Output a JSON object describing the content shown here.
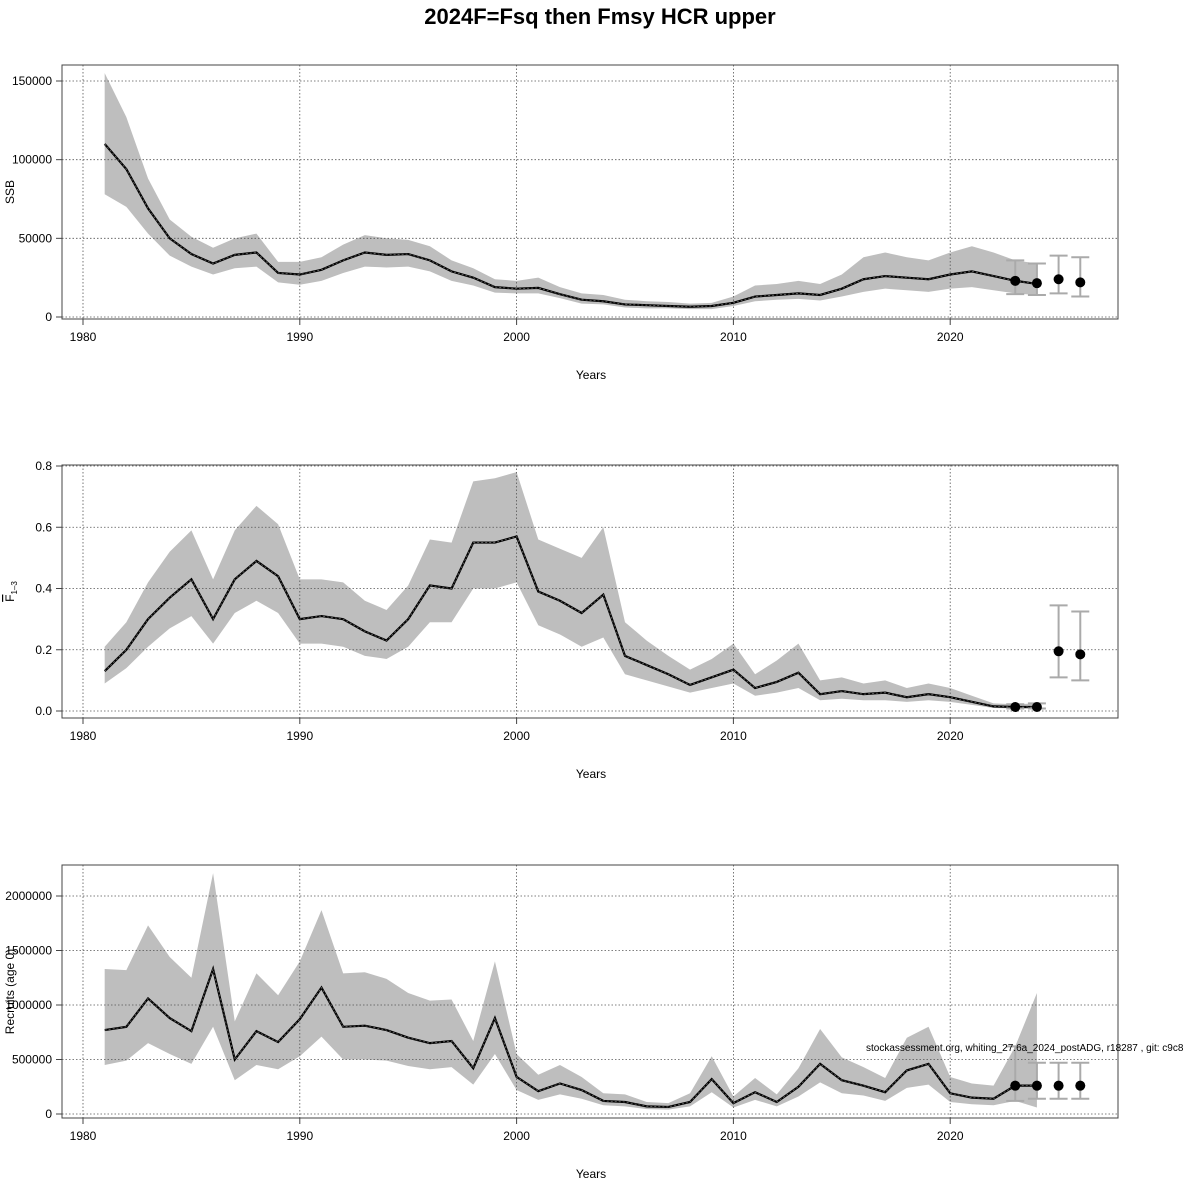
{
  "title": "2024F=Fsq then Fmsy HCR upper",
  "footer": "stockassessment.org, whiting_27.6a_2024_postADG, r18287 , git: c9c8",
  "colors": {
    "band": "#bebebe",
    "line": "#000000",
    "errorbar": "#aaaaaa",
    "grid": "#555555"
  },
  "chart_data": [
    {
      "type": "area",
      "xlabel": "Years",
      "ylabel": "SSB",
      "xlim": [
        1980,
        2026
      ],
      "ylim": [
        0,
        150000
      ],
      "xticks": [
        1980,
        1990,
        2000,
        2010,
        2020
      ],
      "yticks": [
        0,
        50000,
        100000,
        150000
      ],
      "grid": true,
      "x": [
        1981,
        1982,
        1983,
        1984,
        1985,
        1986,
        1987,
        1988,
        1989,
        1990,
        1991,
        1992,
        1993,
        1994,
        1995,
        1996,
        1997,
        1998,
        1999,
        2000,
        2001,
        2002,
        2003,
        2004,
        2005,
        2006,
        2007,
        2008,
        2009,
        2010,
        2011,
        2012,
        2013,
        2014,
        2015,
        2016,
        2017,
        2018,
        2019,
        2020,
        2021,
        2022,
        2023,
        2024
      ],
      "estimate": [
        110000,
        94000,
        69000,
        50000,
        40000,
        34000,
        39500,
        41000,
        28000,
        27000,
        30000,
        36000,
        41000,
        39500,
        40000,
        36000,
        29000,
        25000,
        19000,
        18000,
        18500,
        14500,
        11000,
        10000,
        8000,
        7500,
        7000,
        6500,
        7000,
        9000,
        13000,
        14000,
        15000,
        14000,
        18000,
        24000,
        26000,
        25000,
        24000,
        27000,
        29000,
        26000,
        23000,
        21000
      ],
      "lower": [
        78000,
        70000,
        53000,
        39000,
        32000,
        27000,
        31000,
        32000,
        22000,
        20500,
        23000,
        28000,
        32000,
        31500,
        32000,
        29000,
        23000,
        20000,
        15500,
        15000,
        15000,
        12000,
        8500,
        8000,
        6000,
        5500,
        5500,
        5000,
        5000,
        7000,
        10000,
        11000,
        11500,
        10500,
        13000,
        16000,
        18000,
        17000,
        16000,
        18000,
        19000,
        17000,
        15000,
        14000
      ],
      "upper": [
        155000,
        127000,
        88000,
        62000,
        51000,
        44000,
        50000,
        53000,
        35000,
        35000,
        38000,
        46000,
        52000,
        50000,
        49000,
        45000,
        36000,
        31000,
        24000,
        23000,
        25000,
        19000,
        15000,
        14000,
        11000,
        10000,
        9500,
        8500,
        9000,
        13000,
        20000,
        21000,
        23000,
        21000,
        27000,
        38000,
        41000,
        38000,
        36000,
        41000,
        45000,
        41000,
        36000,
        34000
      ],
      "forecast": {
        "x": [
          2023,
          2024,
          2025,
          2026
        ],
        "y": [
          23000,
          21500,
          24000,
          22000
        ],
        "lower": [
          14500,
          14000,
          15000,
          13000
        ],
        "upper": [
          36000,
          34000,
          39000,
          38000
        ]
      }
    },
    {
      "type": "area",
      "xlabel": "Years",
      "ylabel": "F",
      "ylabel_sub": "1–3",
      "xlim": [
        1980,
        2026
      ],
      "ylim": [
        0,
        0.8
      ],
      "xticks": [
        1980,
        1990,
        2000,
        2010,
        2020
      ],
      "yticks": [
        "0.0",
        "0.2",
        "0.4",
        "0.6",
        "0.8"
      ],
      "grid": true,
      "x": [
        1981,
        1982,
        1983,
        1984,
        1985,
        1986,
        1987,
        1988,
        1989,
        1990,
        1991,
        1992,
        1993,
        1994,
        1995,
        1996,
        1997,
        1998,
        1999,
        2000,
        2001,
        2002,
        2003,
        2004,
        2005,
        2006,
        2007,
        2008,
        2009,
        2010,
        2011,
        2012,
        2013,
        2014,
        2015,
        2016,
        2017,
        2018,
        2019,
        2020,
        2021,
        2022,
        2023,
        2024
      ],
      "estimate": [
        0.13,
        0.2,
        0.3,
        0.37,
        0.43,
        0.3,
        0.43,
        0.49,
        0.44,
        0.3,
        0.31,
        0.3,
        0.26,
        0.23,
        0.3,
        0.41,
        0.4,
        0.55,
        0.55,
        0.57,
        0.39,
        0.36,
        0.32,
        0.38,
        0.18,
        0.15,
        0.12,
        0.085,
        0.11,
        0.135,
        0.075,
        0.095,
        0.125,
        0.055,
        0.065,
        0.055,
        0.06,
        0.045,
        0.055,
        0.045,
        0.03,
        0.015,
        0.013,
        0.013
      ],
      "lower": [
        0.09,
        0.14,
        0.21,
        0.27,
        0.31,
        0.22,
        0.32,
        0.36,
        0.32,
        0.22,
        0.22,
        0.21,
        0.18,
        0.17,
        0.21,
        0.29,
        0.29,
        0.4,
        0.4,
        0.42,
        0.28,
        0.25,
        0.21,
        0.24,
        0.12,
        0.1,
        0.08,
        0.06,
        0.075,
        0.09,
        0.05,
        0.06,
        0.075,
        0.035,
        0.04,
        0.035,
        0.035,
        0.03,
        0.035,
        0.03,
        0.02,
        0.01,
        0.008,
        0.008
      ],
      "upper": [
        0.21,
        0.29,
        0.42,
        0.52,
        0.59,
        0.43,
        0.59,
        0.67,
        0.61,
        0.43,
        0.43,
        0.42,
        0.36,
        0.33,
        0.41,
        0.56,
        0.55,
        0.75,
        0.76,
        0.78,
        0.56,
        0.53,
        0.5,
        0.6,
        0.29,
        0.23,
        0.18,
        0.135,
        0.17,
        0.22,
        0.12,
        0.165,
        0.22,
        0.1,
        0.11,
        0.09,
        0.1,
        0.075,
        0.09,
        0.075,
        0.05,
        0.025,
        0.022,
        0.025
      ],
      "forecast": {
        "x": [
          2023,
          2024,
          2025,
          2026
        ],
        "y": [
          0.013,
          0.013,
          0.195,
          0.185
        ],
        "lower": [
          0.008,
          0.008,
          0.11,
          0.1
        ],
        "upper": [
          0.022,
          0.025,
          0.345,
          0.325
        ]
      }
    },
    {
      "type": "area",
      "xlabel": "Years",
      "ylabel": "Recruits (age 0)",
      "xlim": [
        1980,
        2026
      ],
      "ylim": [
        0,
        2200000
      ],
      "xticks": [
        1980,
        1990,
        2000,
        2010,
        2020
      ],
      "yticks": [
        0,
        500000,
        1000000,
        1500000,
        2000000
      ],
      "grid": true,
      "x": [
        1981,
        1982,
        1983,
        1984,
        1985,
        1986,
        1987,
        1988,
        1989,
        1990,
        1991,
        1992,
        1993,
        1994,
        1995,
        1996,
        1997,
        1998,
        1999,
        2000,
        2001,
        2002,
        2003,
        2004,
        2005,
        2006,
        2007,
        2008,
        2009,
        2010,
        2011,
        2012,
        2013,
        2014,
        2015,
        2016,
        2017,
        2018,
        2019,
        2020,
        2021,
        2022,
        2023,
        2024
      ],
      "estimate": [
        770000,
        800000,
        1060000,
        880000,
        760000,
        1330000,
        500000,
        760000,
        660000,
        870000,
        1160000,
        800000,
        810000,
        770000,
        700000,
        650000,
        670000,
        420000,
        880000,
        340000,
        210000,
        280000,
        220000,
        120000,
        110000,
        70000,
        65000,
        110000,
        320000,
        100000,
        200000,
        110000,
        250000,
        460000,
        310000,
        260000,
        200000,
        400000,
        460000,
        190000,
        150000,
        140000,
        260000,
        260000
      ],
      "lower": [
        450000,
        490000,
        650000,
        550000,
        460000,
        800000,
        310000,
        450000,
        410000,
        530000,
        710000,
        500000,
        500000,
        490000,
        440000,
        410000,
        430000,
        270000,
        550000,
        220000,
        130000,
        180000,
        140000,
        80000,
        70000,
        45000,
        40000,
        70000,
        200000,
        60000,
        130000,
        70000,
        160000,
        290000,
        190000,
        170000,
        120000,
        240000,
        270000,
        110000,
        90000,
        80000,
        120000,
        60000
      ],
      "upper": [
        1330000,
        1320000,
        1730000,
        1440000,
        1250000,
        2210000,
        850000,
        1290000,
        1090000,
        1400000,
        1870000,
        1290000,
        1300000,
        1240000,
        1110000,
        1040000,
        1050000,
        670000,
        1400000,
        550000,
        360000,
        450000,
        340000,
        190000,
        180000,
        110000,
        100000,
        190000,
        530000,
        160000,
        330000,
        180000,
        420000,
        780000,
        520000,
        430000,
        330000,
        700000,
        800000,
        340000,
        280000,
        260000,
        620000,
        1110000
      ],
      "forecast": {
        "x": [
          2023,
          2024,
          2025,
          2026
        ],
        "y": [
          260000,
          260000,
          260000,
          260000
        ],
        "lower": [
          120000,
          140000,
          140000,
          140000
        ],
        "upper": [
          620000,
          470000,
          470000,
          470000
        ]
      }
    }
  ]
}
